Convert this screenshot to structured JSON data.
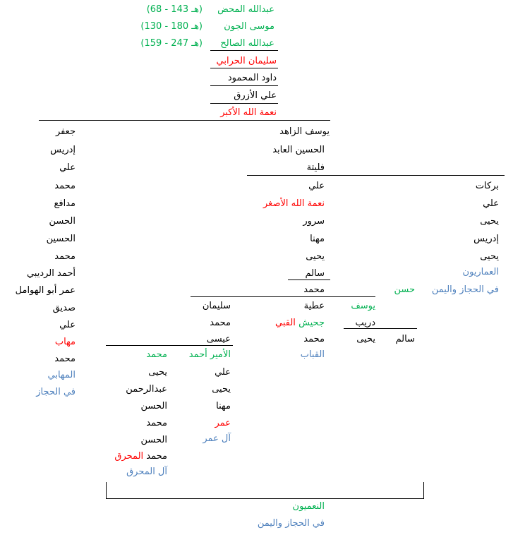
{
  "colors": {
    "black": "#000000",
    "red": "#ff0000",
    "green": "#00b050",
    "blue": "#4f81bd"
  },
  "ancestors": [
    {
      "name": "عبدالله المحض",
      "dates": "(هـ 143 - 68)"
    },
    {
      "name": "موسى الجون",
      "dates": "(هـ 180 - 130)"
    },
    {
      "name": "عبدالله الصالح",
      "dates": "(هـ 247 - 159)"
    }
  ],
  "trunk": [
    "سليمان الحرابي",
    "داود المحمود",
    "علي الأزرق",
    "نعمة الله الأكبر"
  ],
  "left_column": [
    "جعفر",
    "إدريس",
    "علي",
    "محمد",
    "مدافع",
    "الحسن",
    "الحسين",
    "محمد",
    "أحمد الرديبي",
    "عمر أبو الهوامل",
    "صديق",
    "علي",
    "مهاب",
    "محمد",
    "المهابي",
    "في الحجاز"
  ],
  "middle_column": {
    "top": [
      "يوسف الزاهد",
      "الحسين العابد",
      "فليتة"
    ],
    "after_branch": [
      "علي",
      "نعمة الله الأصغر",
      "سرور",
      "مهنا",
      "يحيى",
      "سالم"
    ],
    "muhammad": "محمد",
    "atiya": "عطية",
    "jahish_prefix": "جحيش",
    "jahish_suffix": "القبي",
    "muhammad2": "محمد",
    "qabab": "القباب"
  },
  "right_column": [
    "بركات",
    "علي",
    "يحيى",
    "إدريس",
    "يحيى",
    "العماريون",
    "في الحجاز واليمن"
  ],
  "hasan": "حسن",
  "yusuf_branch": {
    "yusuf": "يوسف",
    "darib": "دريب",
    "yahya": "يحيى",
    "salim": "سالم"
  },
  "suleiman_branch": [
    "سليمان",
    "محمد",
    "عيسى"
  ],
  "prince_column": {
    "title_prefix": "الأمير",
    "title_suffix": "أحمد",
    "items": [
      "علي",
      "يحيى",
      "مهنا",
      "عمر",
      "آل عمر"
    ]
  },
  "muhammad_column": {
    "title": "محمد",
    "items": [
      "يحيى",
      "عبدالرحمن",
      "الحسن",
      "محمد",
      "الحسن"
    ],
    "mahruq_prefix": "محمد",
    "mahruq_suffix": "المحرق",
    "al_mahruq": "آل المحرق"
  },
  "footer": {
    "line1": "النعميون",
    "line2": "في الحجاز واليمن"
  }
}
